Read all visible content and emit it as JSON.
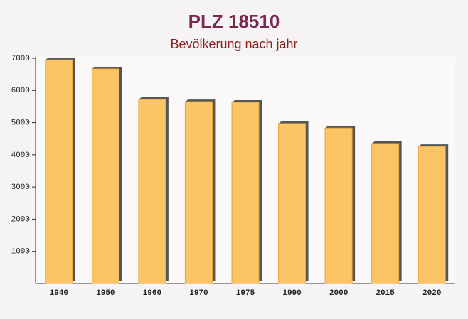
{
  "chart_data": {
    "type": "bar",
    "title": "PLZ 18510",
    "subtitle": "Bevölkerung nach jahr",
    "categories": [
      "1940",
      "1950",
      "1960",
      "1970",
      "1975",
      "1990",
      "2000",
      "2015",
      "2020"
    ],
    "values": [
      6950,
      6670,
      5720,
      5650,
      5630,
      4970,
      4830,
      4350,
      4260
    ],
    "color": "#fbc465",
    "ylim": [
      0,
      7000
    ],
    "yticks": [
      1000,
      2000,
      3000,
      4000,
      5000,
      6000,
      7000
    ],
    "grid": false
  }
}
